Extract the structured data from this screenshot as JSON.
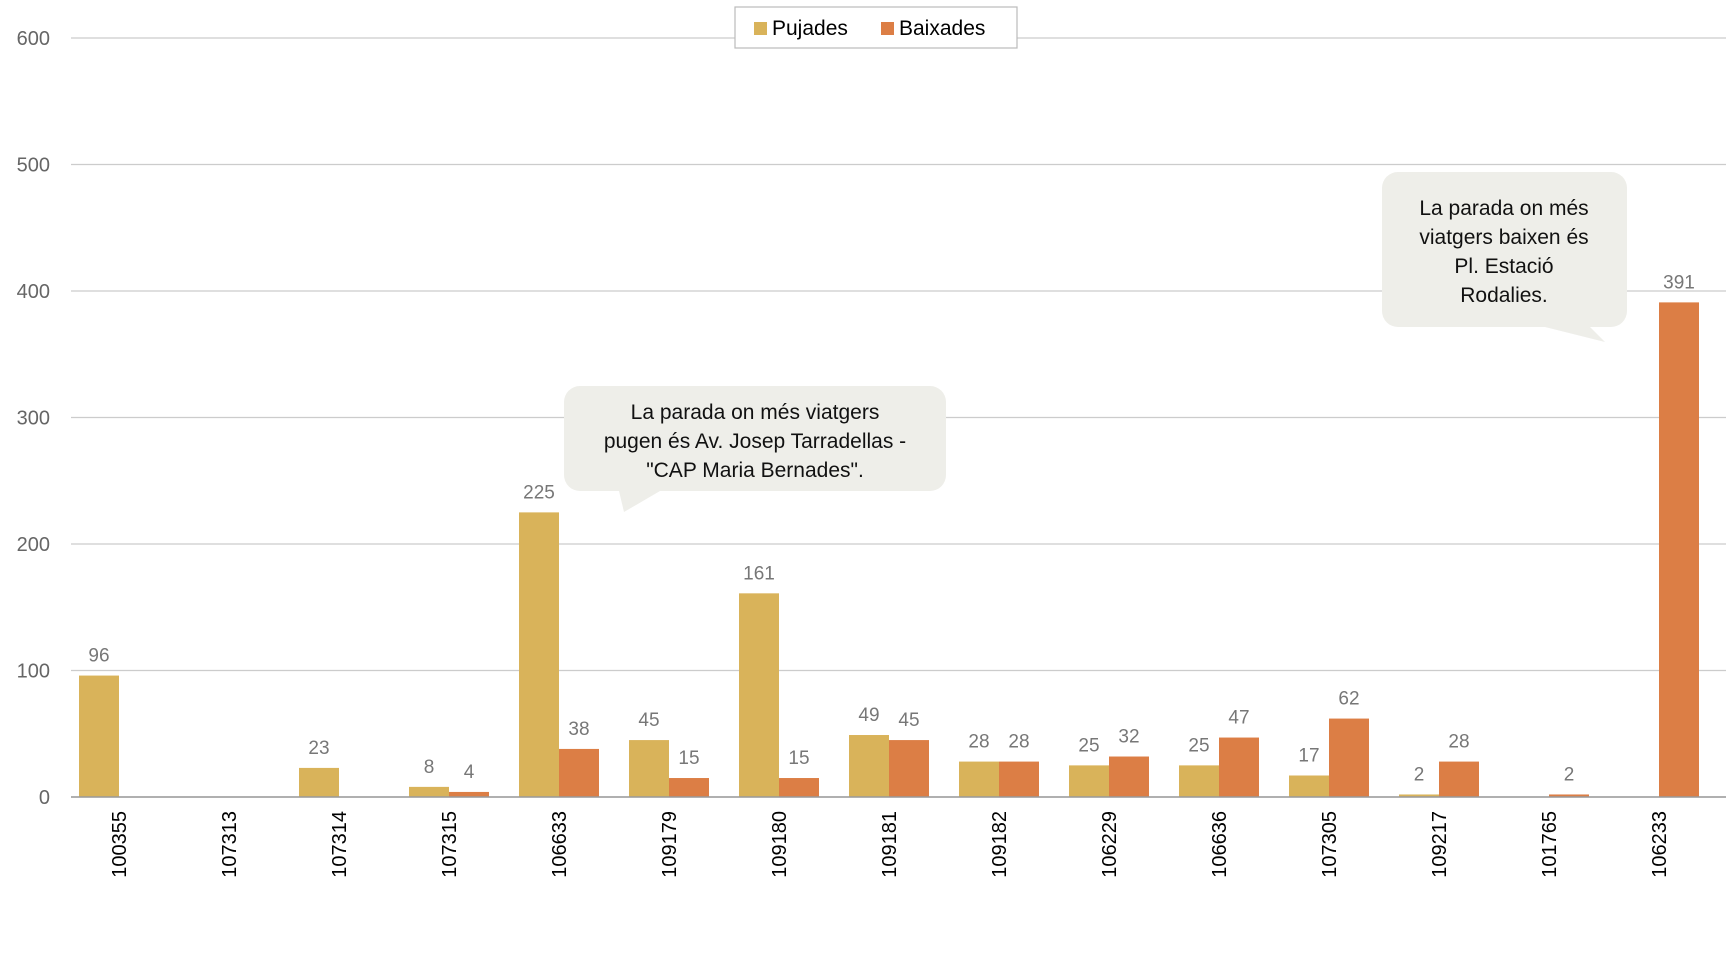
{
  "chart_data": {
    "type": "bar",
    "categories": [
      "100355",
      "107313",
      "107314",
      "107315",
      "106633",
      "109179",
      "109180",
      "109181",
      "109182",
      "106229",
      "106636",
      "107305",
      "109217",
      "101765",
      "106233"
    ],
    "series": [
      {
        "name": "Pujades",
        "color": "#d9b35a",
        "values": [
          96,
          null,
          23,
          8,
          225,
          45,
          161,
          49,
          28,
          25,
          25,
          17,
          2,
          null,
          null
        ]
      },
      {
        "name": "Baixades",
        "color": "#dc7e45",
        "values": [
          null,
          null,
          null,
          4,
          38,
          15,
          15,
          45,
          28,
          32,
          47,
          62,
          28,
          2,
          391
        ]
      }
    ],
    "ylim": [
      0,
      600
    ],
    "yticks": [
      0,
      100,
      200,
      300,
      400,
      500,
      600
    ],
    "grid": true,
    "legend_position": "top-center",
    "annotations": [
      {
        "lines": [
          "La parada on més viatgers",
          "pugen és Av. Josep Tarradellas -",
          "\"CAP Maria Bernades\"."
        ],
        "points_to": "106633"
      },
      {
        "lines": [
          "La parada on més",
          "viatgers baixen és",
          "Pl. Estació",
          "Rodalies."
        ],
        "points_to": "106233"
      }
    ]
  }
}
